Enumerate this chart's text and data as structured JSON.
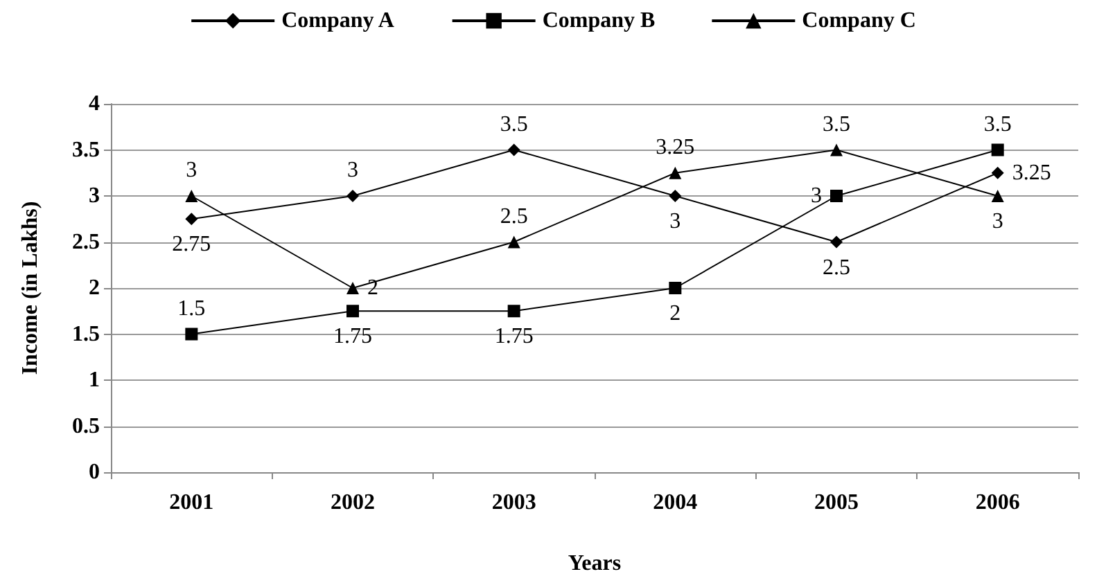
{
  "chart_data": {
    "type": "line",
    "xlabel": "Years",
    "ylabel": "Income (in Lakhs)",
    "categories": [
      "2001",
      "2002",
      "2003",
      "2004",
      "2005",
      "2006"
    ],
    "series": [
      {
        "name": "Company A",
        "color": "#000000",
        "marker": "diamond",
        "values": [
          2.75,
          3,
          3.5,
          3,
          2.5,
          3.25
        ]
      },
      {
        "name": "Company B",
        "color": "#000000",
        "marker": "square",
        "values": [
          1.5,
          1.75,
          1.75,
          2,
          3,
          3.5
        ]
      },
      {
        "name": "Company C",
        "color": "#000000",
        "marker": "triangle",
        "values": [
          3,
          2,
          2.5,
          3.25,
          3.5,
          3
        ]
      }
    ],
    "ylim": [
      0,
      4
    ],
    "yticks": [
      0,
      0.5,
      1,
      1.5,
      2,
      2.5,
      3,
      3.5,
      4
    ],
    "grid": "y",
    "legend": "top",
    "data_labels": true,
    "line_style": "solid"
  }
}
